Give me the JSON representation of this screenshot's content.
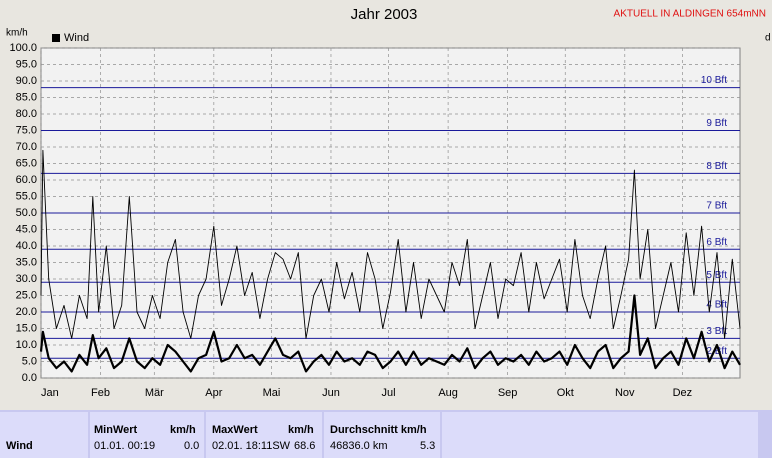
{
  "chart_data": {
    "type": "line",
    "title": "Jahr 2003",
    "top_right_note": "AKTUELL IN ALDINGEN 654mNN",
    "y_label": "km/h",
    "right_label": "d",
    "xlim": [
      1,
      365
    ],
    "xticks": [
      {
        "value": 1,
        "label": "Jan"
      },
      {
        "value": 32,
        "label": "Feb"
      },
      {
        "value": 60,
        "label": "Mär"
      },
      {
        "value": 91,
        "label": "Apr"
      },
      {
        "value": 121,
        "label": "Mai"
      },
      {
        "value": 152,
        "label": "Jun"
      },
      {
        "value": 182,
        "label": "Jul"
      },
      {
        "value": 213,
        "label": "Aug"
      },
      {
        "value": 244,
        "label": "Sep"
      },
      {
        "value": 274,
        "label": "Okt"
      },
      {
        "value": 305,
        "label": "Nov"
      },
      {
        "value": 335,
        "label": "Dez"
      }
    ],
    "ylim": [
      0,
      100
    ],
    "yticks": [
      {
        "value": 0,
        "label": "0.0"
      },
      {
        "value": 5,
        "label": "5.0"
      },
      {
        "value": 10,
        "label": "10.0"
      },
      {
        "value": 15,
        "label": "15.0"
      },
      {
        "value": 20,
        "label": "20.0"
      },
      {
        "value": 25,
        "label": "25.0"
      },
      {
        "value": 30,
        "label": "30.0"
      },
      {
        "value": 35,
        "label": "35.0"
      },
      {
        "value": 40,
        "label": "40.0"
      },
      {
        "value": 45,
        "label": "45.0"
      },
      {
        "value": 50,
        "label": "50.0"
      },
      {
        "value": 55,
        "label": "55.0"
      },
      {
        "value": 60,
        "label": "60.0"
      },
      {
        "value": 65,
        "label": "65.0"
      },
      {
        "value": 70,
        "label": "70.0"
      },
      {
        "value": 75,
        "label": "75.0"
      },
      {
        "value": 80,
        "label": "80.0"
      },
      {
        "value": 85,
        "label": "85.0"
      },
      {
        "value": 90,
        "label": "90.0"
      },
      {
        "value": 95,
        "label": "95.0"
      },
      {
        "value": 100,
        "label": "100.0"
      }
    ],
    "grid": true,
    "bft_lines": [
      {
        "value": 6,
        "label": "2 Bft"
      },
      {
        "value": 12,
        "label": "3 Bft"
      },
      {
        "value": 20,
        "label": "4 Bft"
      },
      {
        "value": 29,
        "label": "5 Bft"
      },
      {
        "value": 39,
        "label": "6 Bft"
      },
      {
        "value": 50,
        "label": "7 Bft"
      },
      {
        "value": 62,
        "label": "8 Bft"
      },
      {
        "value": 75,
        "label": "9 Bft"
      },
      {
        "value": 88,
        "label": "10 Bft"
      }
    ],
    "bft_color": "#1a1a9a",
    "x": [
      1,
      2,
      5,
      9,
      13,
      17,
      21,
      25,
      28,
      31,
      35,
      39,
      43,
      47,
      51,
      55,
      59,
      63,
      67,
      71,
      75,
      79,
      83,
      87,
      91,
      95,
      99,
      103,
      107,
      111,
      115,
      119,
      123,
      127,
      131,
      135,
      139,
      143,
      147,
      151,
      155,
      159,
      163,
      167,
      171,
      175,
      179,
      183,
      187,
      191,
      195,
      199,
      203,
      207,
      211,
      215,
      219,
      223,
      227,
      231,
      235,
      239,
      243,
      247,
      251,
      255,
      259,
      263,
      267,
      271,
      275,
      279,
      283,
      287,
      291,
      295,
      299,
      303,
      307,
      310,
      313,
      317,
      321,
      325,
      329,
      333,
      337,
      341,
      345,
      349,
      353,
      357,
      361,
      365
    ],
    "series": [
      {
        "name": "Wind",
        "color": "#000000",
        "width": 2.2,
        "values": [
          8,
          14,
          6,
          3,
          5,
          2,
          7,
          4,
          13,
          6,
          9,
          3,
          5,
          12,
          5,
          3,
          6,
          4,
          10,
          8,
          5,
          2,
          6,
          7,
          14,
          5,
          6,
          10,
          6,
          7,
          4,
          8,
          12,
          7,
          6,
          8,
          2,
          5,
          7,
          4,
          8,
          5,
          6,
          4,
          8,
          7,
          3,
          5,
          8,
          4,
          8,
          4,
          6,
          5,
          4,
          7,
          5,
          9,
          3,
          6,
          8,
          4,
          6,
          5,
          7,
          4,
          8,
          5,
          6,
          8,
          4,
          10,
          6,
          3,
          8,
          10,
          3,
          6,
          8,
          25,
          7,
          12,
          3,
          6,
          8,
          4,
          12,
          6,
          14,
          5,
          10,
          3,
          8,
          4
        ]
      },
      {
        "color": "#000000",
        "width": 0.9,
        "values": [
          25,
          69,
          30,
          15,
          22,
          12,
          25,
          18,
          55,
          20,
          40,
          15,
          22,
          55,
          20,
          15,
          25,
          18,
          35,
          42,
          20,
          12,
          25,
          30,
          46,
          22,
          30,
          40,
          25,
          32,
          18,
          30,
          38,
          36,
          30,
          38,
          12,
          25,
          30,
          20,
          35,
          24,
          32,
          20,
          38,
          30,
          15,
          26,
          42,
          20,
          35,
          18,
          30,
          25,
          20,
          35,
          28,
          42,
          15,
          25,
          35,
          18,
          30,
          28,
          38,
          20,
          35,
          24,
          30,
          36,
          20,
          42,
          25,
          18,
          30,
          40,
          15,
          25,
          36,
          63,
          30,
          45,
          15,
          25,
          35,
          20,
          44,
          25,
          46,
          20,
          38,
          12,
          36,
          15
        ]
      }
    ]
  },
  "table": {
    "header": [
      "MinWert",
      "km/h",
      "MaxWert",
      "km/h",
      "Durchschnitt km/h"
    ],
    "rows": [
      [
        "Wind",
        "01.01.  00:19",
        "0.0",
        "02.01.  18:11SW",
        "68.6",
        "46836.0 km",
        "5.3"
      ]
    ]
  }
}
